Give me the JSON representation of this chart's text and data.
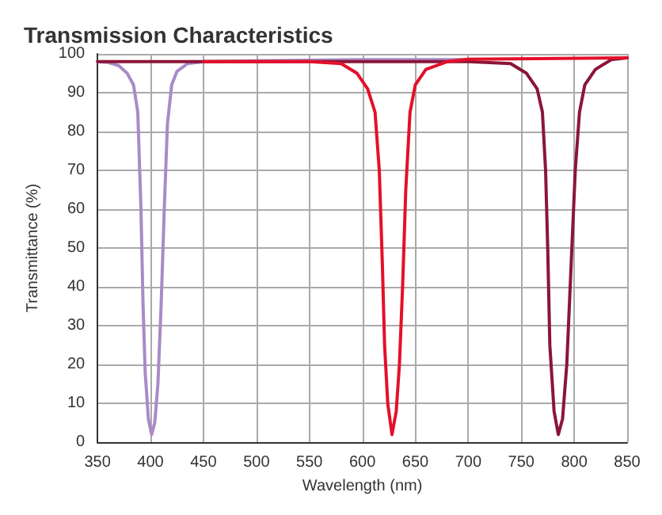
{
  "chart_data": {
    "type": "line",
    "title": "Transmission Characteristics",
    "xlabel": "Wavelength (nm)",
    "ylabel": "Transmittance (%)",
    "xlim": [
      350,
      850
    ],
    "xticks": [
      350,
      400,
      450,
      500,
      550,
      600,
      650,
      700,
      750,
      800,
      850
    ],
    "ylim": [
      0,
      100
    ],
    "yticks": [
      0,
      10,
      20,
      30,
      40,
      50,
      60,
      70,
      80,
      90,
      100
    ],
    "grid": true,
    "marker": "none",
    "line_style": "solid",
    "series": [
      {
        "color": "#a98bc6",
        "x": [
          350,
          360,
          370,
          378,
          384,
          388,
          391,
          393,
          395,
          398,
          401,
          404,
          407,
          410,
          413,
          416,
          420,
          425,
          435,
          450,
          500,
          600,
          700
        ],
        "values": [
          98,
          97.8,
          97,
          95,
          92,
          85,
          60,
          35,
          18,
          6,
          2,
          5,
          15,
          35,
          60,
          82,
          92,
          95.5,
          97.5,
          98,
          98.2,
          98.5,
          98.5
        ]
      },
      {
        "color": "#8b1538",
        "x": [
          350,
          500,
          700,
          740,
          755,
          765,
          770,
          773,
          775,
          777,
          781,
          785,
          789,
          793,
          797,
          801,
          805,
          810,
          820,
          835,
          850
        ],
        "values": [
          98,
          98,
          98,
          97.5,
          95,
          91,
          85,
          70,
          50,
          25,
          8,
          2,
          6,
          20,
          45,
          70,
          85,
          92,
          96,
          98.5,
          99
        ]
      },
      {
        "color": "#e3102a",
        "x": [
          450,
          550,
          580,
          595,
          605,
          612,
          616,
          619,
          621,
          624,
          628,
          632,
          635,
          638,
          641,
          645,
          650,
          660,
          680,
          700,
          850
        ],
        "values": [
          98,
          98,
          97.5,
          95,
          91,
          85,
          70,
          45,
          25,
          10,
          2,
          8,
          20,
          40,
          65,
          85,
          92,
          96,
          98,
          98.6,
          99
        ]
      }
    ]
  }
}
